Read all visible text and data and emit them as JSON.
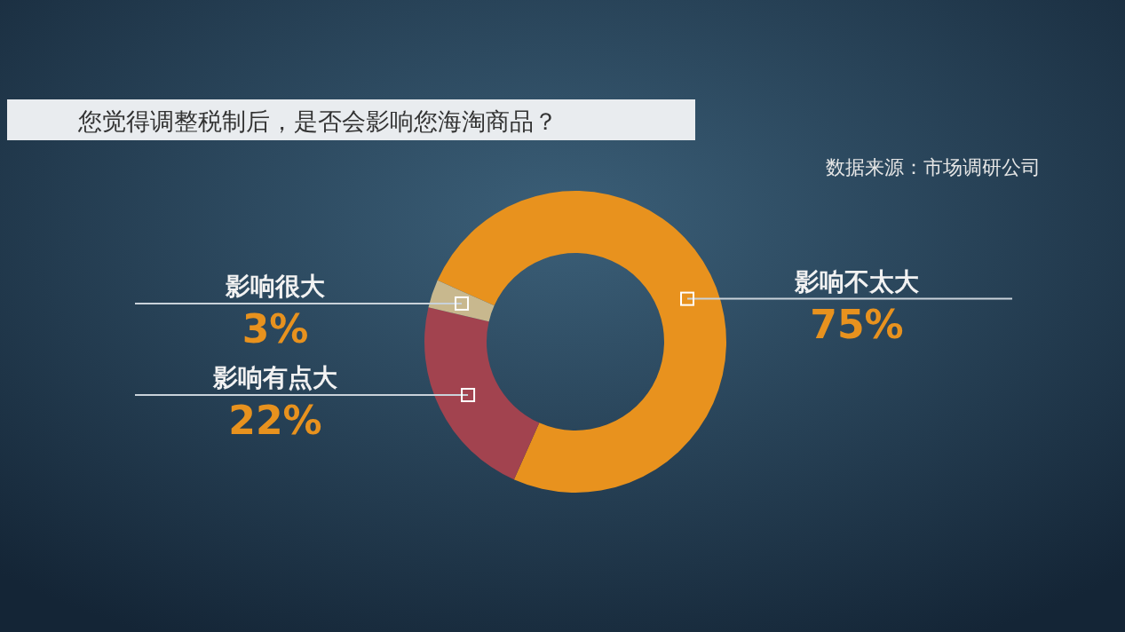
{
  "chart_data": {
    "type": "donut",
    "title": "您觉得调整税制后，是否会影响您海淘商品？",
    "annotations": [
      "数据来源：市场调研公司"
    ],
    "categories": [
      "影响不太大",
      "影响有点大",
      "影响很大"
    ],
    "values": [
      75,
      22,
      3
    ],
    "colors": [
      "#e8921e",
      "#a2434f",
      "#c8b88e"
    ],
    "value_labels": [
      "75%",
      "22%",
      "3%"
    ]
  }
}
